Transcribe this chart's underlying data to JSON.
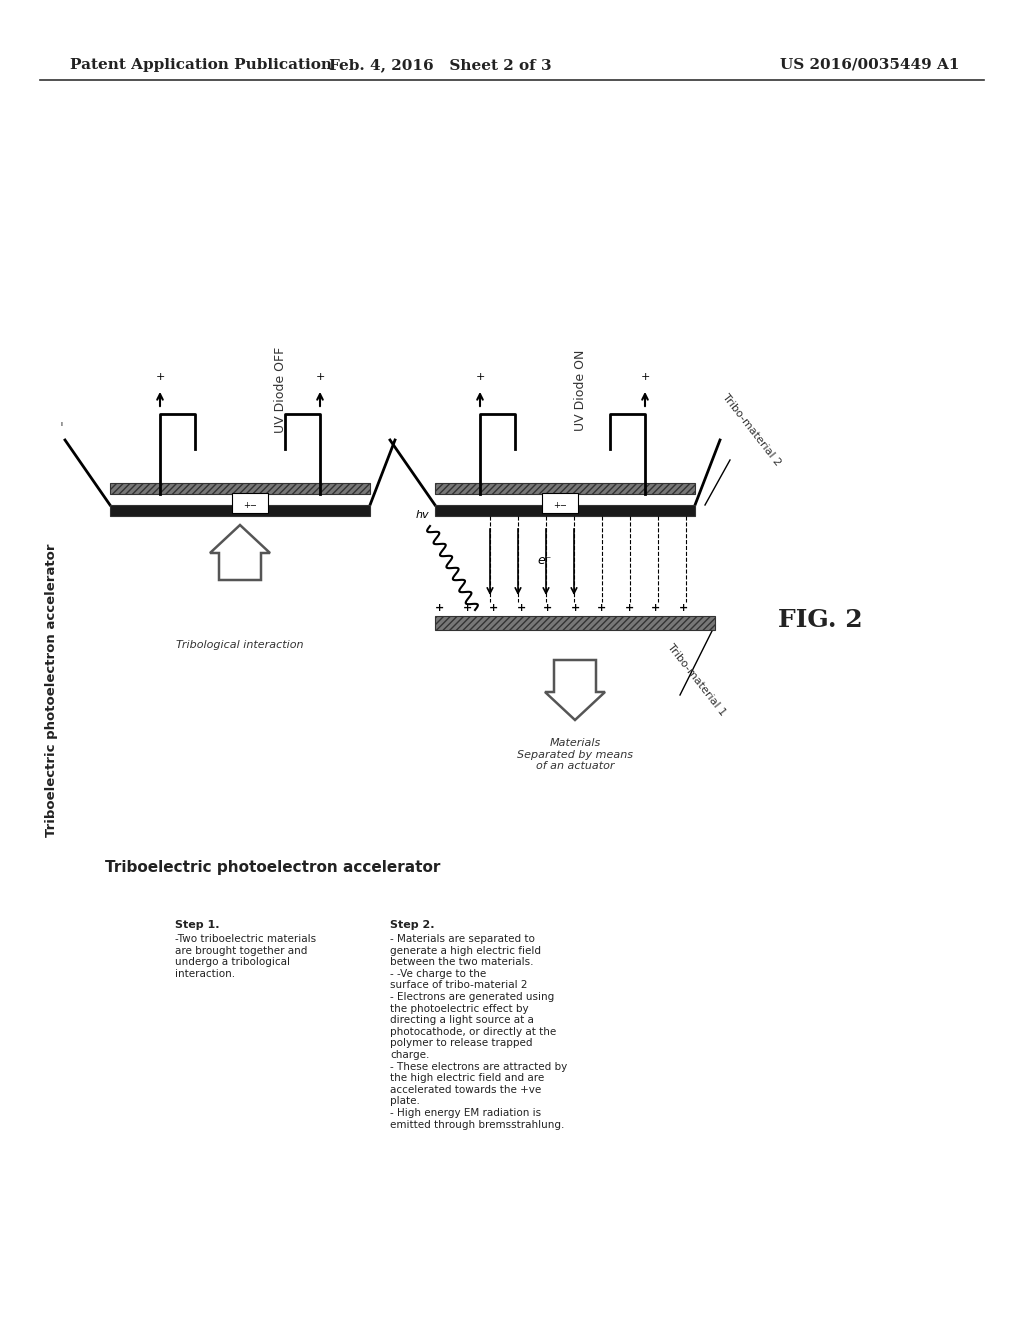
{
  "background_color": "#ffffff",
  "header_left": "Patent Application Publication",
  "header_center": "Feb. 4, 2016   Sheet 2 of 3",
  "header_right": "US 2016/0035449 A1",
  "title_rotated": "Triboelectric photoelectron accelerator",
  "fig_label": "FIG. 2",
  "uv_off_label": "UV Diode OFF",
  "uv_on_label": "UV Diode ON",
  "tribo2_label": "Tribo-material 2",
  "tribo1_label": "Tribo-material 1",
  "tribological_label": "Tribological interaction",
  "materials_sep_label": "Materials\nSeparated by means\nof an actuator",
  "step1_title": "Step 1.",
  "step1_body": "-Two triboelectric materials\nare brought together and\nundergo a tribological\ninteraction.",
  "step2_title": "Step 2.",
  "step2_body": "- Materials are separated to\ngenerate a high electric field\nbetween the two materials.\n- -Ve charge to the\nsurface of tribo-material 2\n- Electrons are generated using\nthe photoelectric effect by\ndirecting a light source at a\nphotocathode, or directly at the\npolymer to release trapped\ncharge.\n- These electrons are attracted by\nthe high electric field and are\naccelerated towards the +ve\nplate.\n- High energy EM radiation is\nemitted through bremsstrahlung."
}
